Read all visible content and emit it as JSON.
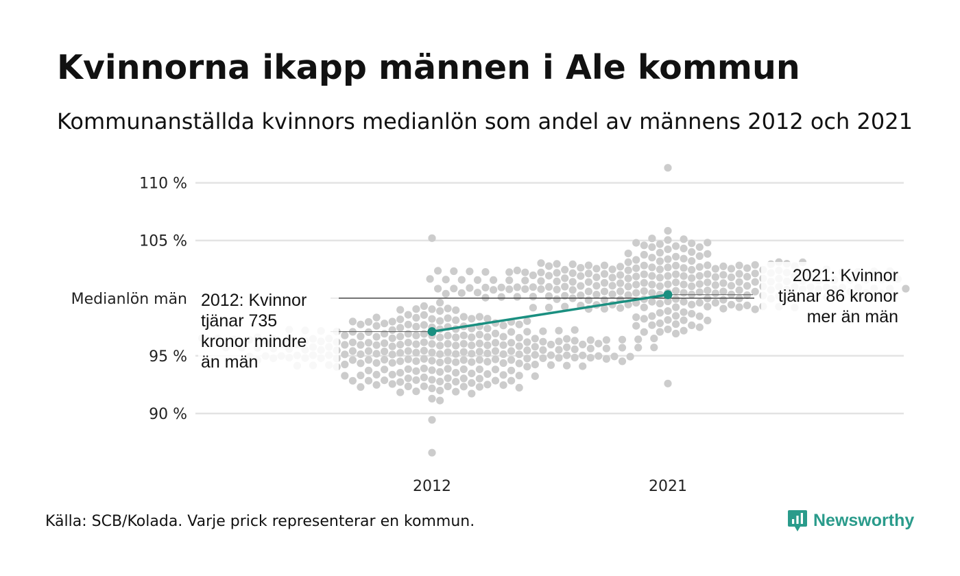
{
  "title": "Kvinnorna ikapp männen i Ale kommun",
  "subtitle": "Kommunanställda kvinnors medianlön som andel av männens 2012 och 2021",
  "source": "Källa: SCB/Kolada. Varje prick representerar en kommun.",
  "brand": {
    "name": "Newsworthy",
    "icon": "newsworthy-logo-icon",
    "color": "#2a9b8b"
  },
  "chart_data": {
    "type": "scatter",
    "title": "Kvinnorna ikapp männen i Ale kommun",
    "subtitle": "Kommunanställda kvinnors medianlön som andel av männens 2012 och 2021",
    "categories": [
      "2012",
      "2021"
    ],
    "ylim": [
      86,
      111.5
    ],
    "yticks": [
      90,
      95,
      105,
      110
    ],
    "ytick_labels": [
      "90 %",
      "95 %",
      "105 %",
      "110 %"
    ],
    "reference_line": {
      "value": 100,
      "label": "Medianlön män"
    },
    "grid": true,
    "colors": {
      "dots": "#cccccc",
      "highlight": "#1a8f80",
      "grid": "#e3e3e3",
      "reference": "#333333"
    },
    "distribution_2012": {
      "count": 290,
      "center": 95.3,
      "min": 86.6,
      "max": 105.2
    },
    "distribution_2021": {
      "count": 290,
      "center": 101.2,
      "min": 92.6,
      "max": 111.3
    },
    "highlight": {
      "name": "Ale kommun",
      "points": [
        {
          "x": "2012",
          "y": 97.1,
          "label": [
            "2012: Kvinnor",
            "tjänar 735",
            "kronor mindre",
            "än män"
          ]
        },
        {
          "x": "2021",
          "y": 100.3,
          "label": [
            "2021: Kvinnor",
            "tjänar 86 kronor",
            "mer än män"
          ]
        }
      ]
    }
  }
}
